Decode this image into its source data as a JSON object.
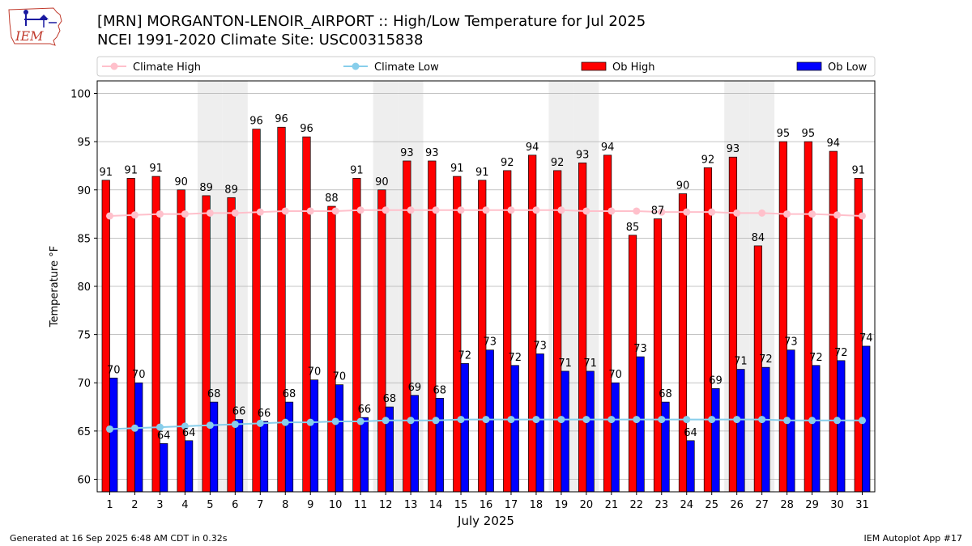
{
  "header": {
    "logo_text": "IEM",
    "title_line1": "[MRN] MORGANTON-LENOIR_AIRPORT :: High/Low Temperature for Jul 2025",
    "title_line2": "NCEI 1991-2020 Climate Site: USC00315838"
  },
  "footer": {
    "generated": "Generated at 16 Sep 2025 6:48 AM CDT in 0.32s",
    "app": "IEM Autoplot App #17"
  },
  "colors": {
    "ob_high": "#ff0000",
    "ob_low": "#0000ff",
    "climate_high": "#ffc0cb",
    "climate_low": "#87ceeb",
    "weekend_shade": "#eeeeee",
    "grid": "#b0b0b0"
  },
  "chart_data": {
    "type": "bar",
    "xlabel": "July 2025",
    "ylabel": "Temperature °F",
    "ylim": [
      58.7,
      101.3
    ],
    "yticks": [
      60,
      65,
      70,
      75,
      80,
      85,
      90,
      95,
      100
    ],
    "grid": true,
    "legend_position": "top",
    "categories": [
      "1",
      "2",
      "3",
      "4",
      "5",
      "6",
      "7",
      "8",
      "9",
      "10",
      "11",
      "12",
      "13",
      "14",
      "15",
      "16",
      "17",
      "18",
      "19",
      "20",
      "21",
      "22",
      "23",
      "24",
      "25",
      "26",
      "27",
      "28",
      "29",
      "30",
      "31"
    ],
    "shaded_weekend_days": [
      5,
      6,
      12,
      13,
      19,
      20,
      26,
      27
    ],
    "series": [
      {
        "name": "Ob High",
        "kind": "bar",
        "values": [
          91,
          91,
          91,
          90,
          89,
          89,
          96,
          96,
          96,
          88,
          91,
          90,
          93,
          93,
          91,
          91,
          92,
          94,
          92,
          93,
          94,
          85,
          87,
          90,
          92,
          93,
          84,
          95,
          95,
          94,
          91
        ],
        "bar_heights": [
          91.0,
          91.2,
          91.4,
          90.0,
          89.4,
          89.2,
          96.3,
          96.5,
          95.5,
          88.3,
          91.2,
          90.0,
          93.0,
          93.0,
          91.4,
          91.0,
          92.0,
          93.6,
          92.0,
          92.8,
          93.6,
          85.3,
          87.0,
          89.6,
          92.3,
          93.4,
          84.2,
          95.0,
          95.0,
          94.0,
          91.2
        ]
      },
      {
        "name": "Ob Low",
        "kind": "bar",
        "values": [
          70,
          70,
          64,
          64,
          68,
          66,
          66,
          68,
          70,
          70,
          66,
          68,
          69,
          68,
          72,
          73,
          72,
          73,
          71,
          71,
          70,
          73,
          68,
          64,
          69,
          71,
          72,
          73,
          72,
          72,
          74
        ],
        "bar_heights": [
          70.5,
          70.0,
          63.7,
          64.0,
          68.0,
          66.2,
          66.0,
          68.0,
          70.3,
          69.8,
          66.4,
          67.5,
          68.7,
          68.4,
          72.0,
          73.4,
          71.8,
          73.0,
          71.2,
          71.2,
          70.0,
          72.7,
          68.0,
          64.0,
          69.4,
          71.4,
          71.6,
          73.4,
          71.8,
          72.3,
          73.8
        ]
      },
      {
        "name": "Climate High",
        "kind": "line",
        "values": [
          87.3,
          87.4,
          87.5,
          87.5,
          87.6,
          87.6,
          87.7,
          87.8,
          87.8,
          87.8,
          87.9,
          87.9,
          87.9,
          87.9,
          87.9,
          87.9,
          87.9,
          87.9,
          87.9,
          87.8,
          87.8,
          87.8,
          87.7,
          87.7,
          87.7,
          87.6,
          87.6,
          87.5,
          87.5,
          87.4,
          87.3
        ]
      },
      {
        "name": "Climate Low",
        "kind": "line",
        "values": [
          65.2,
          65.3,
          65.4,
          65.5,
          65.6,
          65.7,
          65.8,
          65.9,
          65.9,
          66.0,
          66.0,
          66.1,
          66.1,
          66.1,
          66.2,
          66.2,
          66.2,
          66.2,
          66.2,
          66.2,
          66.2,
          66.2,
          66.2,
          66.2,
          66.2,
          66.2,
          66.2,
          66.1,
          66.1,
          66.1,
          66.1
        ]
      }
    ]
  }
}
